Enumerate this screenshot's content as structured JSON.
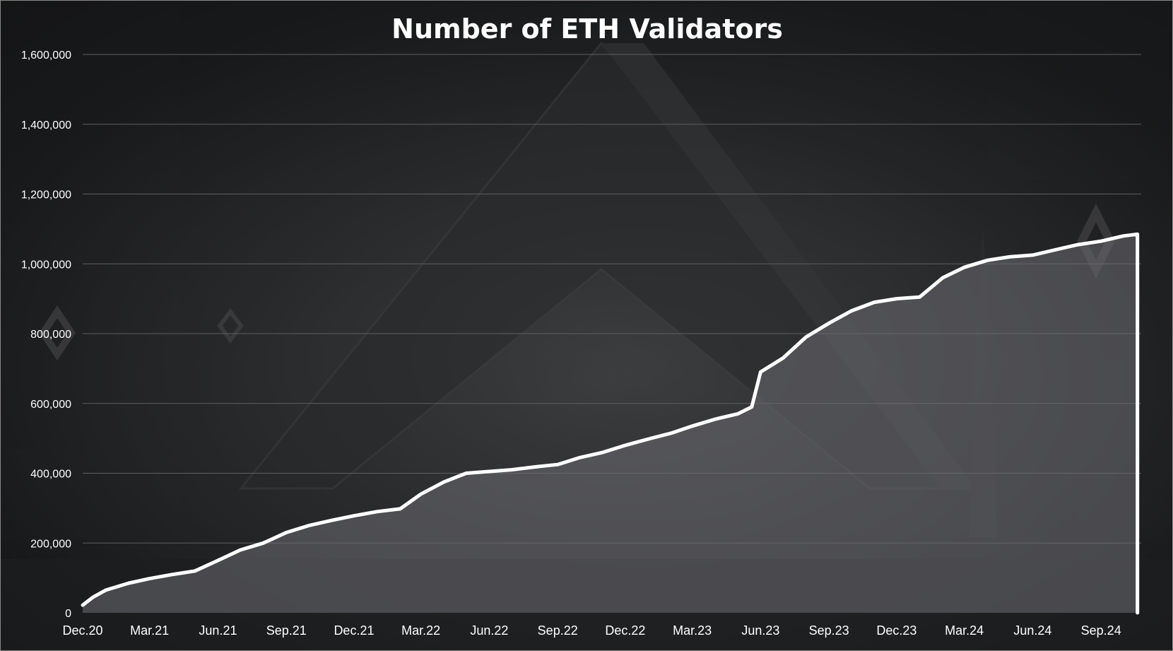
{
  "chart_data": {
    "type": "area",
    "title": "Number of ETH Validators",
    "xlabel": "",
    "ylabel": "",
    "ylim": [
      0,
      1600000
    ],
    "grid": true,
    "legend": "none",
    "colors": {
      "line": "#ffffff",
      "fill": "#6e6e72",
      "text": "#ffffff"
    },
    "y_ticks": [
      "0",
      "200,000",
      "400,000",
      "600,000",
      "800,000",
      "1,000,000",
      "1,200,000",
      "1,400,000",
      "1,600,000"
    ],
    "y_tick_values": [
      0,
      200000,
      400000,
      600000,
      800000,
      1000000,
      1200000,
      1400000,
      1600000
    ],
    "x_ticks": [
      "Dec.20",
      "Mar.21",
      "Jun.21",
      "Sep.21",
      "Dec.21",
      "Mar.22",
      "Jun.22",
      "Sep.22",
      "Dec.22",
      "Mar.23",
      "Jun.23",
      "Sep.23",
      "Dec.23",
      "Mar.24",
      "Jun.24",
      "Sep.24"
    ],
    "x_tick_dates": [
      "2020-12-01",
      "2021-03-01",
      "2021-06-01",
      "2021-09-01",
      "2021-12-01",
      "2022-03-01",
      "2022-06-01",
      "2022-09-01",
      "2022-12-01",
      "2023-03-01",
      "2023-06-01",
      "2023-09-01",
      "2023-12-01",
      "2024-03-01",
      "2024-06-01",
      "2024-09-01"
    ],
    "series": [
      {
        "x": [
          "2020-12-01",
          "2020-12-15",
          "2021-01-01",
          "2021-02-01",
          "2021-03-01",
          "2021-04-01",
          "2021-05-01",
          "2021-06-01",
          "2021-07-01",
          "2021-08-01",
          "2021-09-01",
          "2021-10-01",
          "2021-11-01",
          "2021-12-01",
          "2022-01-01",
          "2022-02-01",
          "2022-03-01",
          "2022-04-01",
          "2022-05-01",
          "2022-06-01",
          "2022-07-01",
          "2022-08-01",
          "2022-09-01",
          "2022-10-01",
          "2022-11-01",
          "2022-12-01",
          "2023-01-01",
          "2023-02-01",
          "2023-03-01",
          "2023-04-01",
          "2023-05-01",
          "2023-05-20",
          "2023-06-01",
          "2023-07-01",
          "2023-08-01",
          "2023-09-01",
          "2023-10-01",
          "2023-11-01",
          "2023-12-01",
          "2024-01-01",
          "2024-02-01",
          "2024-03-01",
          "2024-04-01",
          "2024-05-01",
          "2024-06-01",
          "2024-07-01",
          "2024-08-01",
          "2024-09-01",
          "2024-10-01",
          "2024-10-20"
        ],
        "values": [
          22000,
          45000,
          65000,
          85000,
          98000,
          110000,
          120000,
          150000,
          180000,
          200000,
          230000,
          250000,
          265000,
          278000,
          290000,
          298000,
          340000,
          375000,
          400000,
          405000,
          410000,
          418000,
          425000,
          445000,
          460000,
          480000,
          498000,
          515000,
          535000,
          555000,
          570000,
          590000,
          690000,
          730000,
          790000,
          830000,
          865000,
          890000,
          900000,
          905000,
          960000,
          990000,
          1010000,
          1020000,
          1025000,
          1040000,
          1055000,
          1065000,
          1080000,
          1085000
        ]
      }
    ]
  }
}
